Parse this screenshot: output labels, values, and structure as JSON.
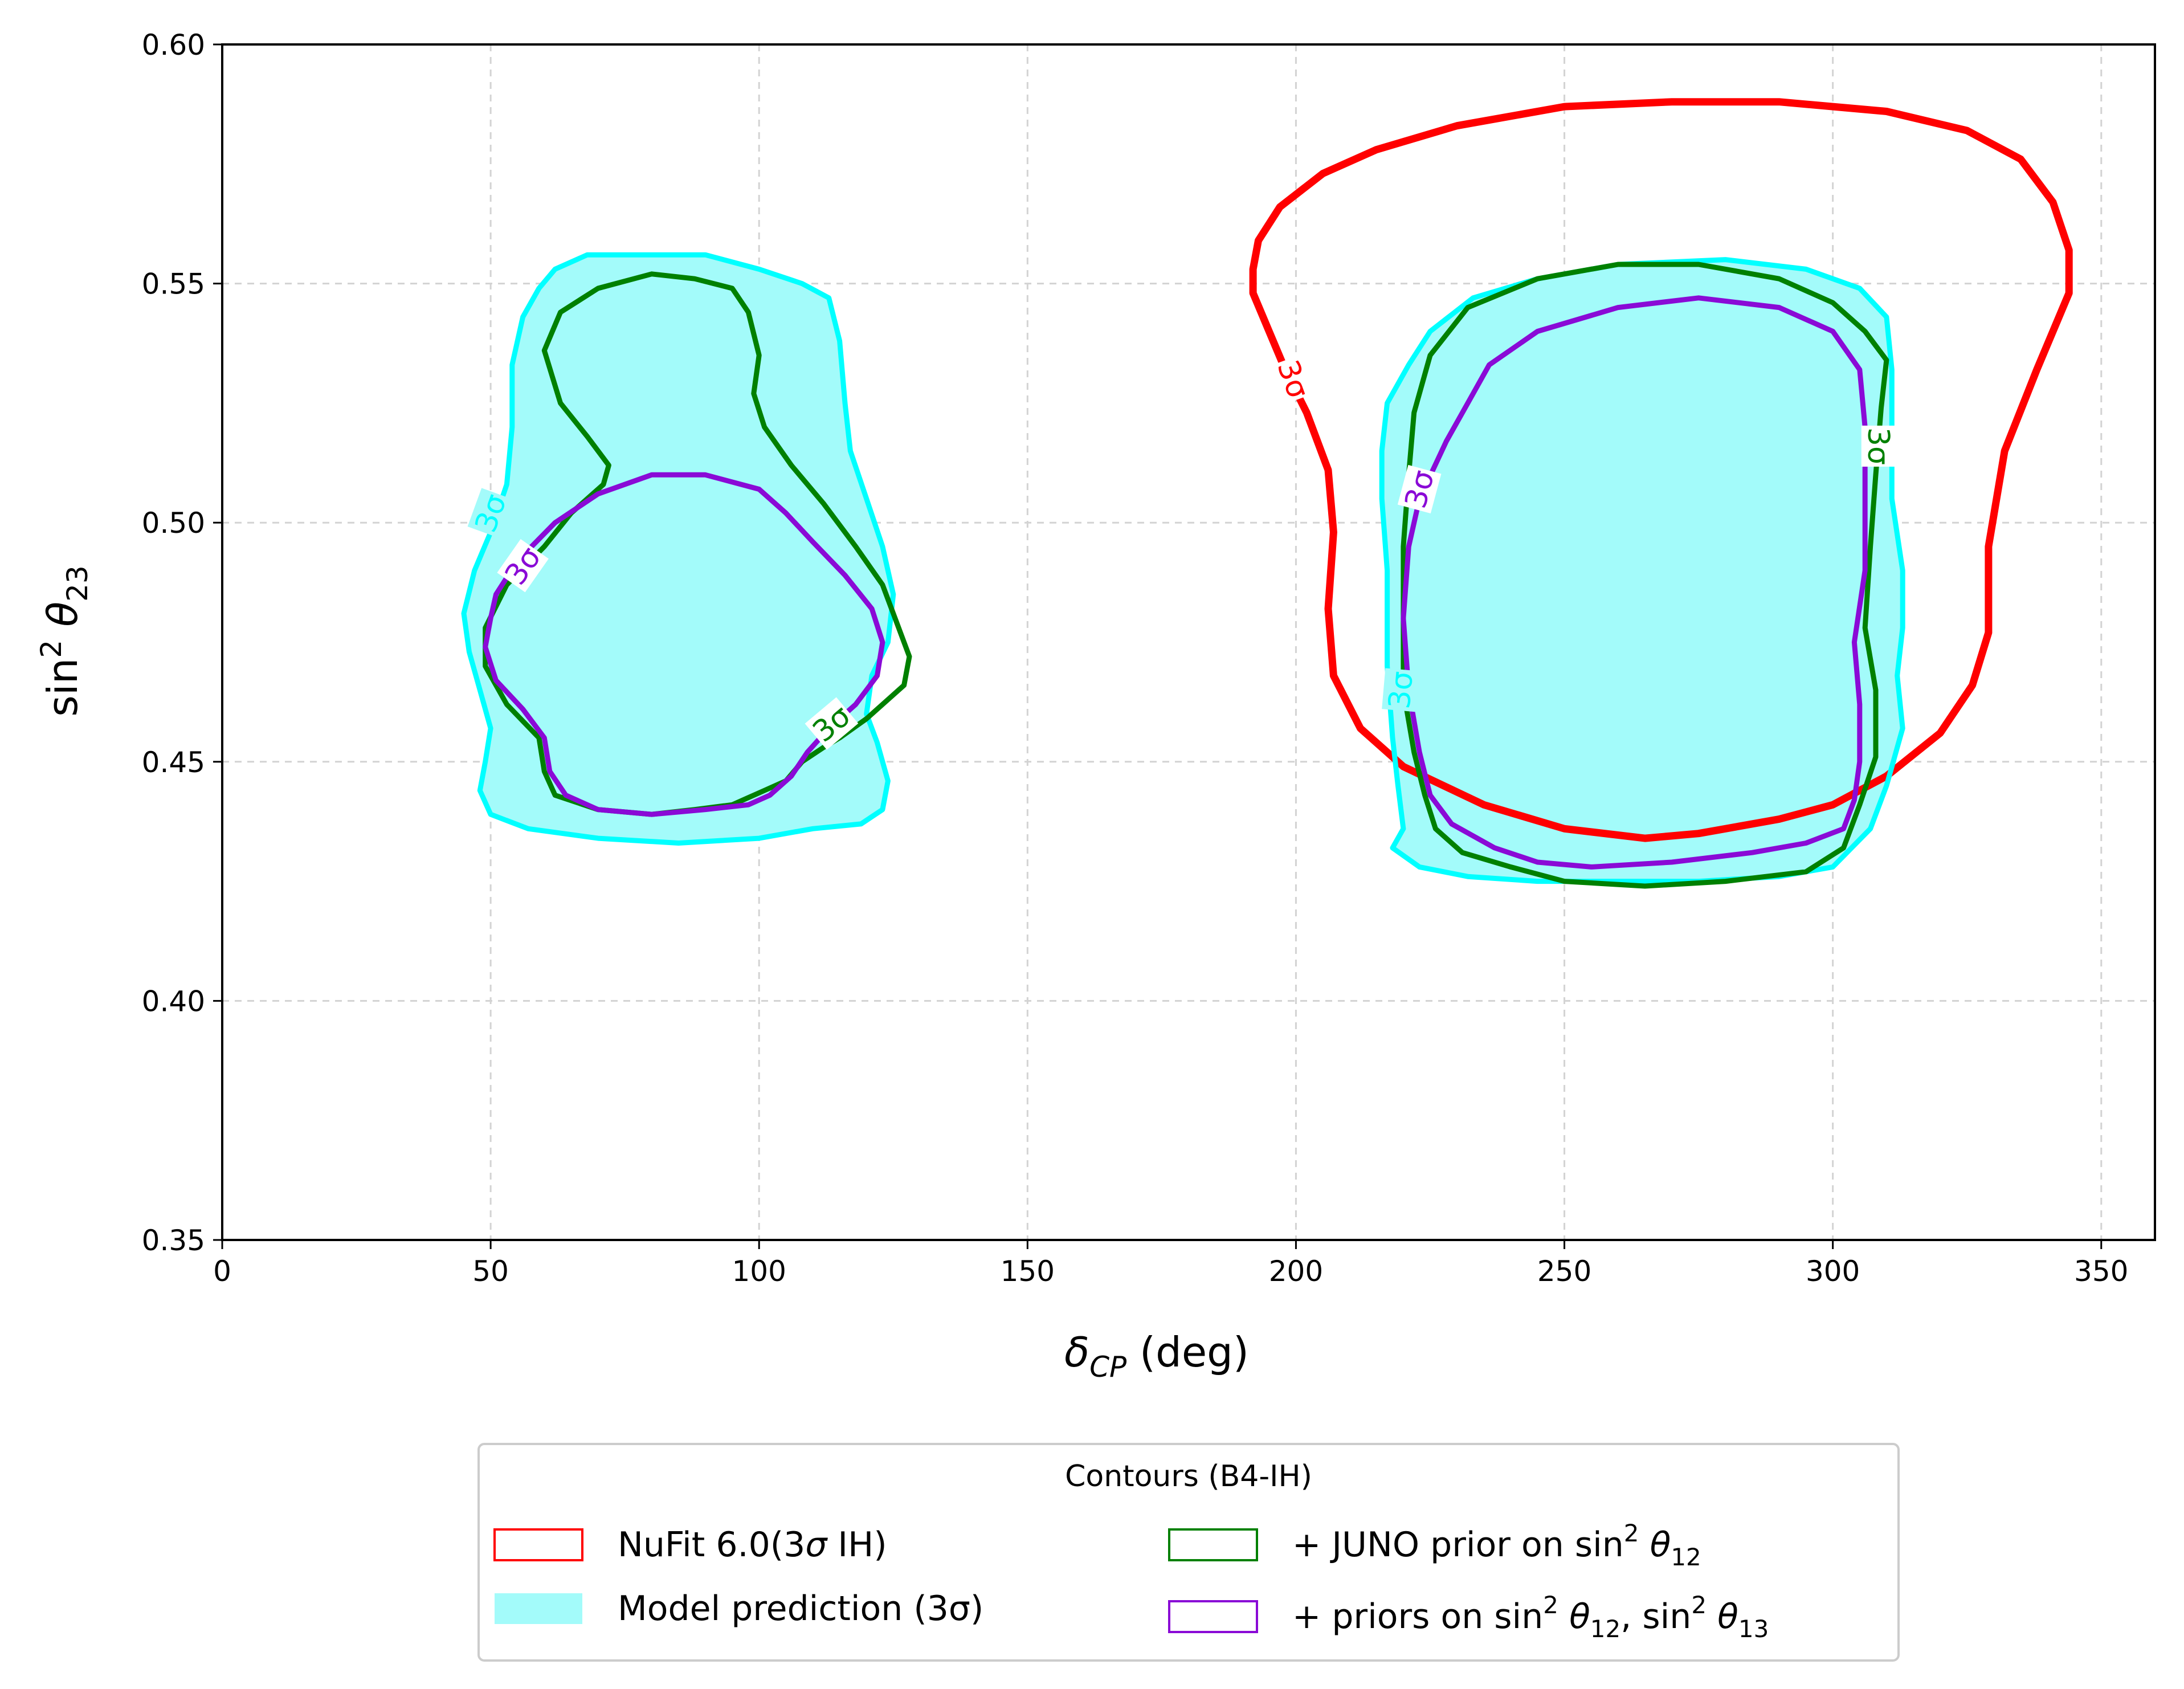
{
  "chart_data": {
    "type": "contour",
    "xlabel": "δ_CP (deg)",
    "ylabel": "sin²θ_23",
    "xlim": [
      0,
      360
    ],
    "ylim": [
      0.35,
      0.6
    ],
    "xticks": [
      0,
      50,
      100,
      150,
      200,
      250,
      300,
      350
    ],
    "yticks": [
      0.35,
      0.4,
      0.45,
      0.5,
      0.55,
      0.6
    ],
    "ytick_labels": [
      "0.35",
      "0.40",
      "0.45",
      "0.50",
      "0.55",
      "0.60"
    ],
    "grid": true,
    "legend_position": "below",
    "legend": {
      "title": "Contours (B4-IH)",
      "entries": [
        {
          "label_parts": [
            "NuFit 6.0(3",
            "σ",
            " IH)"
          ],
          "style": "outline",
          "color": "#ff0000"
        },
        {
          "label_parts": [
            "Model prediction (3σ)"
          ],
          "style": "filled",
          "color": "#a3fbfa"
        },
        {
          "label_parts": [
            "+ JUNO prior on sin",
            "2",
            "θ",
            "12"
          ],
          "style": "outline",
          "color": "#008000"
        },
        {
          "label_parts": [
            "+ priors on sin",
            "2",
            "θ",
            "12",
            ", sin",
            "2",
            "θ",
            "13"
          ],
          "style": "outline",
          "color": "#8a0ad6"
        }
      ]
    },
    "series": [
      {
        "key": "nufit",
        "color": "#ff0000",
        "fill": null,
        "contours": [
          [
            [
              192,
              0.553
            ],
            [
              193,
              0.559
            ],
            [
              197,
              0.566
            ],
            [
              205,
              0.573
            ],
            [
              215,
              0.578
            ],
            [
              230,
              0.583
            ],
            [
              250,
              0.587
            ],
            [
              270,
              0.588
            ],
            [
              290,
              0.588
            ],
            [
              310,
              0.586
            ],
            [
              325,
              0.582
            ],
            [
              335,
              0.576
            ],
            [
              341,
              0.567
            ],
            [
              344,
              0.557
            ],
            [
              344,
              0.548
            ],
            [
              338,
              0.532
            ],
            [
              332,
              0.515
            ],
            [
              329,
              0.495
            ],
            [
              329,
              0.477
            ],
            [
              326,
              0.466
            ],
            [
              320,
              0.456
            ],
            [
              310,
              0.447
            ],
            [
              300,
              0.441
            ],
            [
              290,
              0.438
            ],
            [
              275,
              0.435
            ],
            [
              265,
              0.434
            ],
            [
              250,
              0.436
            ],
            [
              235,
              0.441
            ],
            [
              220,
              0.449
            ],
            [
              212,
              0.457
            ],
            [
              207,
              0.468
            ],
            [
              206,
              0.482
            ],
            [
              207,
              0.498
            ],
            [
              206,
              0.511
            ],
            [
              202,
              0.523
            ],
            [
              198,
              0.532
            ],
            [
              195,
              0.54
            ],
            [
              192,
              0.548
            ],
            [
              192,
              0.553
            ]
          ]
        ],
        "label": {
          "text": "3σ",
          "x": 199.5,
          "y": 0.53,
          "rotation": 70
        }
      },
      {
        "key": "model",
        "color": "#00ffff",
        "fill": "#a3fbfa",
        "contours": [
          [
            [
              59,
              0.549
            ],
            [
              62,
              0.553
            ],
            [
              68,
              0.556
            ],
            [
              80,
              0.556
            ],
            [
              90,
              0.556
            ],
            [
              100,
              0.553
            ],
            [
              108,
              0.55
            ],
            [
              113,
              0.547
            ],
            [
              115,
              0.538
            ],
            [
              116,
              0.525
            ],
            [
              117,
              0.515
            ],
            [
              120,
              0.505
            ],
            [
              123,
              0.495
            ],
            [
              125,
              0.485
            ],
            [
              124,
              0.475
            ],
            [
              121,
              0.468
            ],
            [
              120,
              0.46
            ],
            [
              122,
              0.454
            ],
            [
              124,
              0.446
            ],
            [
              123,
              0.44
            ],
            [
              119,
              0.437
            ],
            [
              110,
              0.436
            ],
            [
              100,
              0.434
            ],
            [
              85,
              0.433
            ],
            [
              70,
              0.434
            ],
            [
              57,
              0.436
            ],
            [
              50,
              0.439
            ],
            [
              48,
              0.444
            ],
            [
              49,
              0.45
            ],
            [
              50,
              0.457
            ],
            [
              48,
              0.465
            ],
            [
              46,
              0.473
            ],
            [
              45,
              0.481
            ],
            [
              47,
              0.49
            ],
            [
              50,
              0.498
            ],
            [
              53,
              0.508
            ],
            [
              54,
              0.52
            ],
            [
              54,
              0.533
            ],
            [
              56,
              0.543
            ],
            [
              59,
              0.549
            ]
          ],
          [
            [
              221,
              0.533
            ],
            [
              225,
              0.54
            ],
            [
              233,
              0.547
            ],
            [
              245,
              0.551
            ],
            [
              260,
              0.554
            ],
            [
              280,
              0.555
            ],
            [
              295,
              0.553
            ],
            [
              305,
              0.549
            ],
            [
              310,
              0.543
            ],
            [
              311,
              0.532
            ],
            [
              311,
              0.52
            ],
            [
              311,
              0.505
            ],
            [
              313,
              0.49
            ],
            [
              313,
              0.478
            ],
            [
              312,
              0.468
            ],
            [
              313,
              0.457
            ],
            [
              310,
              0.445
            ],
            [
              307,
              0.436
            ],
            [
              300,
              0.428
            ],
            [
              290,
              0.426
            ],
            [
              275,
              0.425
            ],
            [
              260,
              0.425
            ],
            [
              245,
              0.425
            ],
            [
              232,
              0.426
            ],
            [
              223,
              0.428
            ],
            [
              218,
              0.432
            ],
            [
              220,
              0.436
            ],
            [
              219,
              0.445
            ],
            [
              218,
              0.455
            ],
            [
              217,
              0.47
            ],
            [
              217,
              0.49
            ],
            [
              216,
              0.505
            ],
            [
              216,
              0.515
            ],
            [
              217,
              0.525
            ],
            [
              221,
              0.533
            ]
          ]
        ],
        "labels": [
          {
            "text": "3σ",
            "x": 50,
            "y": 0.502,
            "rotation": -70
          },
          {
            "text": "3σ",
            "x": 219.5,
            "y": 0.465,
            "rotation": -85
          }
        ]
      },
      {
        "key": "juno",
        "color": "#008000",
        "fill": null,
        "contours": [
          [
            [
              60,
              0.536
            ],
            [
              63,
              0.544
            ],
            [
              70,
              0.549
            ],
            [
              80,
              0.552
            ],
            [
              88,
              0.551
            ],
            [
              95,
              0.549
            ],
            [
              98,
              0.544
            ],
            [
              100,
              0.535
            ],
            [
              99,
              0.527
            ],
            [
              101,
              0.52
            ],
            [
              106,
              0.512
            ],
            [
              112,
              0.504
            ],
            [
              118,
              0.495
            ],
            [
              123,
              0.487
            ],
            [
              126,
              0.478
            ],
            [
              128,
              0.472
            ],
            [
              127,
              0.466
            ],
            [
              124,
              0.463
            ],
            [
              120,
              0.459
            ],
            [
              115,
              0.455
            ],
            [
              112,
              0.453
            ],
            [
              108,
              0.45
            ],
            [
              105,
              0.446
            ],
            [
              101,
              0.444
            ],
            [
              95,
              0.441
            ],
            [
              88,
              0.44
            ],
            [
              80,
              0.439
            ],
            [
              70,
              0.44
            ],
            [
              62,
              0.443
            ],
            [
              60,
              0.448
            ],
            [
              59,
              0.455
            ],
            [
              53,
              0.462
            ],
            [
              49,
              0.47
            ],
            [
              49,
              0.478
            ],
            [
              53,
              0.487
            ],
            [
              60,
              0.495
            ],
            [
              65,
              0.502
            ],
            [
              71,
              0.508
            ],
            [
              72,
              0.512
            ],
            [
              68,
              0.518
            ],
            [
              63,
              0.525
            ],
            [
              60,
              0.536
            ]
          ],
          [
            [
              222,
              0.523
            ],
            [
              225,
              0.535
            ],
            [
              232,
              0.545
            ],
            [
              245,
              0.551
            ],
            [
              260,
              0.554
            ],
            [
              275,
              0.554
            ],
            [
              290,
              0.551
            ],
            [
              300,
              0.546
            ],
            [
              306,
              0.54
            ],
            [
              310,
              0.534
            ],
            [
              309,
              0.524
            ],
            [
              308,
              0.51
            ],
            [
              307,
              0.495
            ],
            [
              306,
              0.478
            ],
            [
              308,
              0.465
            ],
            [
              308,
              0.451
            ],
            [
              305,
              0.441
            ],
            [
              302,
              0.432
            ],
            [
              295,
              0.427
            ],
            [
              280,
              0.425
            ],
            [
              265,
              0.424
            ],
            [
              250,
              0.425
            ],
            [
              240,
              0.428
            ],
            [
              231,
              0.431
            ],
            [
              226,
              0.436
            ],
            [
              224,
              0.443
            ],
            [
              222,
              0.452
            ],
            [
              220,
              0.465
            ],
            [
              220,
              0.48
            ],
            [
              220,
              0.495
            ],
            [
              221,
              0.51
            ],
            [
              222,
              0.523
            ]
          ]
        ],
        "labels": [
          {
            "text": "3σ",
            "x": 113.5,
            "y": 0.458,
            "rotation": -40
          },
          {
            "text": "3σ",
            "x": 308.5,
            "y": 0.516,
            "rotation": 90
          }
        ]
      },
      {
        "key": "priors",
        "color": "#8a0ad6",
        "fill": null,
        "contours": [
          [
            [
              51,
              0.485
            ],
            [
              55,
              0.492
            ],
            [
              62,
              0.5
            ],
            [
              70,
              0.506
            ],
            [
              80,
              0.51
            ],
            [
              90,
              0.51
            ],
            [
              100,
              0.507
            ],
            [
              105,
              0.502
            ],
            [
              110,
              0.496
            ],
            [
              116,
              0.489
            ],
            [
              121,
              0.482
            ],
            [
              123,
              0.475
            ],
            [
              122,
              0.468
            ],
            [
              118,
              0.462
            ],
            [
              113,
              0.457
            ],
            [
              109,
              0.452
            ],
            [
              106,
              0.447
            ],
            [
              102,
              0.443
            ],
            [
              98,
              0.441
            ],
            [
              90,
              0.44
            ],
            [
              80,
              0.439
            ],
            [
              70,
              0.44
            ],
            [
              64,
              0.443
            ],
            [
              61,
              0.448
            ],
            [
              60,
              0.455
            ],
            [
              56,
              0.461
            ],
            [
              51,
              0.467
            ],
            [
              49,
              0.474
            ],
            [
              50,
              0.48
            ],
            [
              51,
              0.485
            ]
          ],
          [
            [
              228,
              0.517
            ],
            [
              232,
              0.525
            ],
            [
              236,
              0.533
            ],
            [
              245,
              0.54
            ],
            [
              260,
              0.545
            ],
            [
              275,
              0.547
            ],
            [
              290,
              0.545
            ],
            [
              300,
              0.54
            ],
            [
              305,
              0.532
            ],
            [
              306,
              0.52
            ],
            [
              306,
              0.505
            ],
            [
              306,
              0.49
            ],
            [
              304,
              0.475
            ],
            [
              305,
              0.462
            ],
            [
              305,
              0.45
            ],
            [
              304,
              0.442
            ],
            [
              302,
              0.436
            ],
            [
              295,
              0.433
            ],
            [
              285,
              0.431
            ],
            [
              270,
              0.429
            ],
            [
              255,
              0.428
            ],
            [
              245,
              0.429
            ],
            [
              237,
              0.432
            ],
            [
              229,
              0.437
            ],
            [
              225,
              0.443
            ],
            [
              223,
              0.452
            ],
            [
              221,
              0.465
            ],
            [
              220,
              0.48
            ],
            [
              221,
              0.495
            ],
            [
              223,
              0.505
            ],
            [
              228,
              0.517
            ]
          ]
        ],
        "labels": [
          {
            "text": "3σ",
            "x": 56,
            "y": 0.491,
            "rotation": -55
          },
          {
            "text": "3σ",
            "x": 223,
            "y": 0.507,
            "rotation": -75
          }
        ]
      }
    ]
  }
}
